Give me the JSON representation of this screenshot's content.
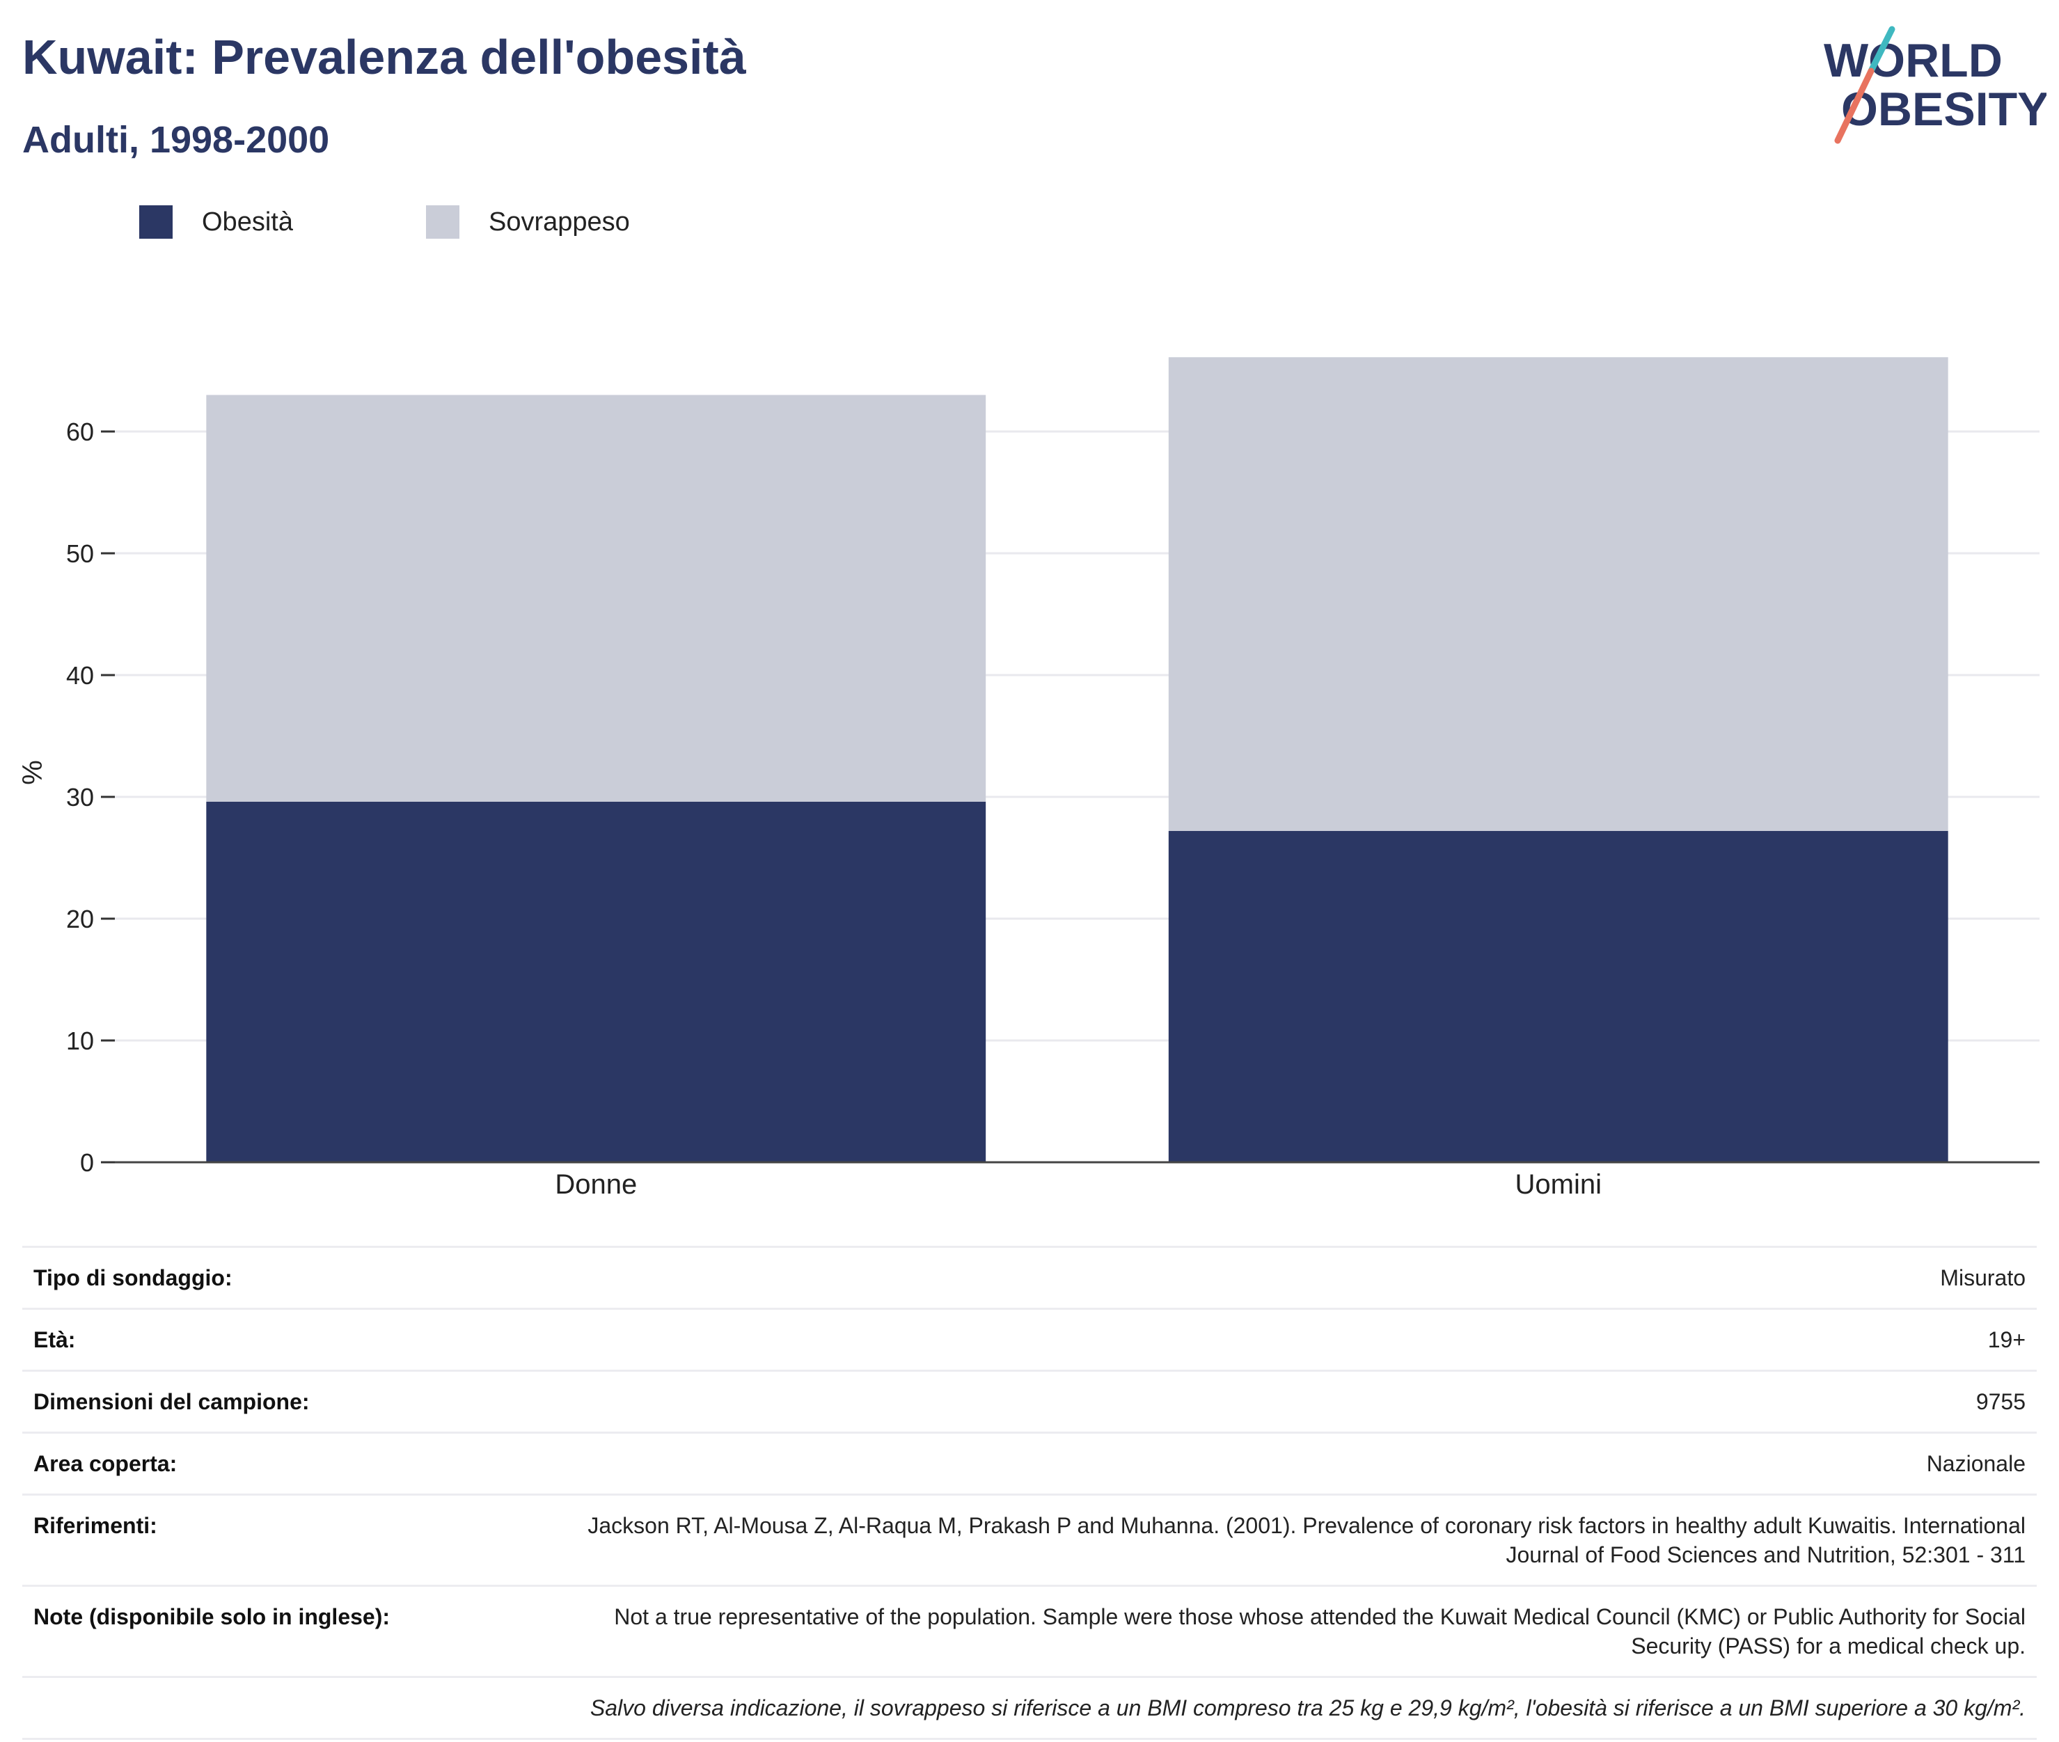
{
  "header": {
    "title": "Kuwait: Prevalenza dell'obesità",
    "subtitle": "Adulti, 1998-2000"
  },
  "logo": {
    "line1": "WORLD",
    "line2": "OBESITY",
    "colors": {
      "text": "#2b3764",
      "teal": "#3fb8c0",
      "coral": "#e8735f"
    }
  },
  "legend": [
    {
      "label": "Obesità",
      "color": "#2b3764"
    },
    {
      "label": "Sovrappeso",
      "color": "#cacdd8"
    }
  ],
  "chart_data": {
    "type": "bar",
    "stacked": true,
    "categories": [
      "Donne",
      "Uomini"
    ],
    "series": [
      {
        "name": "Obesità",
        "values": [
          29.6,
          27.2
        ],
        "color": "#2b3764"
      },
      {
        "name": "Sovrappeso",
        "values": [
          33.4,
          38.9
        ],
        "color": "#cacdd8"
      }
    ],
    "xlabel": "",
    "ylabel": "%",
    "ylim": [
      0,
      68
    ],
    "yticks": [
      0,
      10,
      20,
      30,
      40,
      50,
      60
    ],
    "grid": true,
    "legend_position": "top-left"
  },
  "info_table": [
    {
      "label": "Tipo di sondaggio:",
      "value": "Misurato"
    },
    {
      "label": "Età:",
      "value": "19+"
    },
    {
      "label": "Dimensioni del campione:",
      "value": "9755"
    },
    {
      "label": "Area coperta:",
      "value": "Nazionale"
    },
    {
      "label": "Riferimenti:",
      "value": "Jackson RT, Al-Mousa Z, Al-Raqua M, Prakash P and Muhanna. (2001). Prevalence of coronary risk factors in healthy adult Kuwaitis. International Journal of Food Sciences and Nutrition, 52:301 - 311"
    },
    {
      "label": "Note (disponibile solo in inglese):",
      "value": "Not a true representative of the population. Sample were those whose attended the Kuwait Medical Council (KMC) or Public Authority for Social Security (PASS) for a medical check up."
    }
  ],
  "footnote": "Salvo diversa indicazione, il sovrappeso si riferisce a un BMI compreso tra 25 kg e 29,9 kg/m², l'obesità si riferisce a un BMI superiore a 30 kg/m²."
}
